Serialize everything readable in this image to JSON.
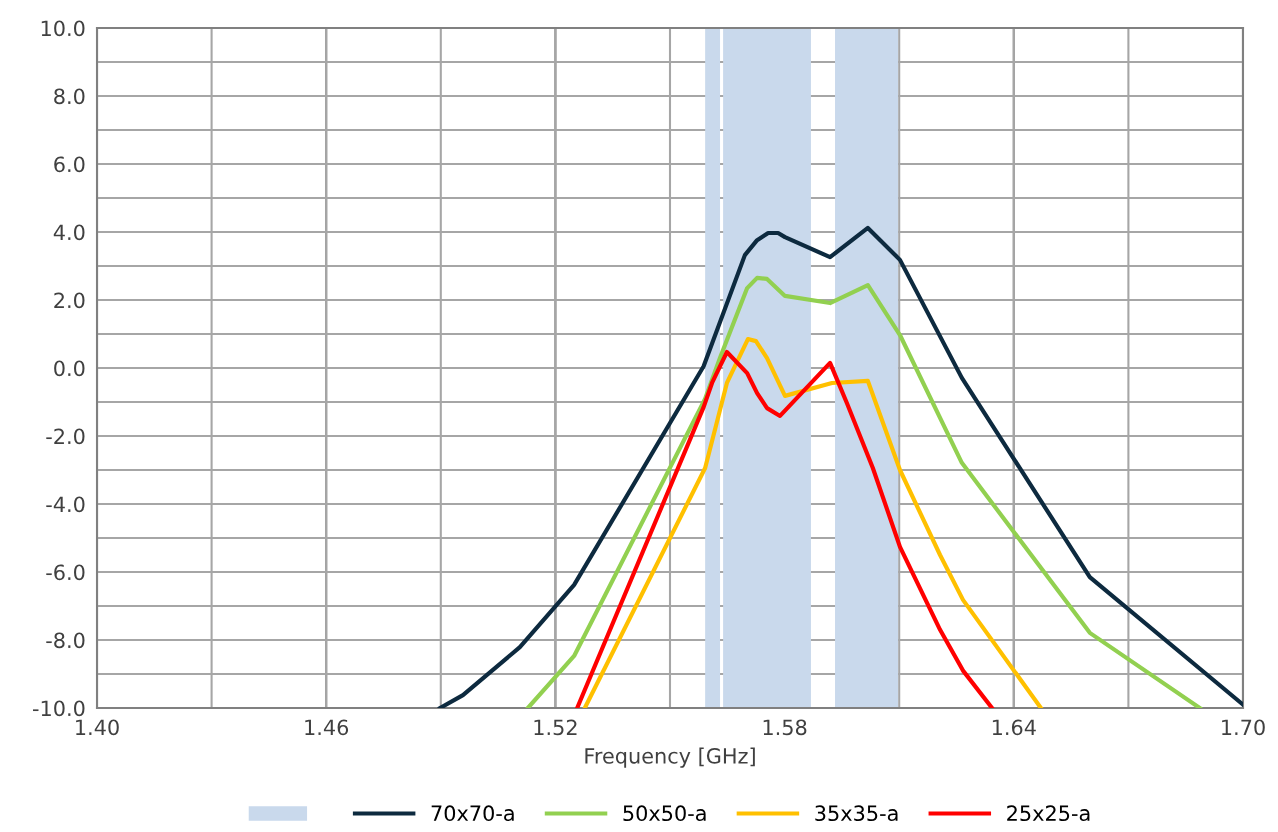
{
  "chart_data": {
    "type": "line",
    "xlabel": "Frequency [GHz]",
    "xlim": [
      1.4,
      1.7
    ],
    "xticks": [
      {
        "value": 1.4,
        "label": "1.40"
      },
      {
        "value": 1.43,
        "label": null
      },
      {
        "value": 1.46,
        "label": "1.46"
      },
      {
        "value": 1.49,
        "label": null
      },
      {
        "value": 1.52,
        "label": "1.52"
      },
      {
        "value": 1.55,
        "label": null
      },
      {
        "value": 1.58,
        "label": "1.58"
      },
      {
        "value": 1.61,
        "label": null
      },
      {
        "value": 1.64,
        "label": "1.64"
      },
      {
        "value": 1.67,
        "label": null
      },
      {
        "value": 1.7,
        "label": "1.70"
      }
    ],
    "ylim": [
      -10,
      10
    ],
    "yticks": [
      {
        "value": -10,
        "label": "-10.0"
      },
      {
        "value": -9,
        "label": null
      },
      {
        "value": -8,
        "label": "-8.0"
      },
      {
        "value": -7,
        "label": null
      },
      {
        "value": -6,
        "label": "-6.0"
      },
      {
        "value": -5,
        "label": null
      },
      {
        "value": -4,
        "label": "-4.0"
      },
      {
        "value": -3,
        "label": null
      },
      {
        "value": -2,
        "label": "-2.0"
      },
      {
        "value": -1,
        "label": null
      },
      {
        "value": 0,
        "label": "0.0"
      },
      {
        "value": 1,
        "label": null
      },
      {
        "value": 2,
        "label": "2.0"
      },
      {
        "value": 3,
        "label": null
      },
      {
        "value": 4,
        "label": "4.0"
      },
      {
        "value": 5,
        "label": null
      },
      {
        "value": 6,
        "label": "6.0"
      },
      {
        "value": 7,
        "label": null
      },
      {
        "value": 8,
        "label": "8.0"
      },
      {
        "value": 9,
        "label": null
      },
      {
        "value": 10,
        "label": "10.0"
      }
    ],
    "grid": true,
    "legend": "bottom",
    "marker": "none",
    "line_style": "solid",
    "bands": [
      {
        "axis": "x",
        "from": 1.5592,
        "to": 1.5631,
        "color": "#c9d9ec"
      },
      {
        "axis": "x",
        "from": 1.5639,
        "to": 1.5869,
        "color": "#c9d9ec"
      },
      {
        "axis": "x",
        "from": 1.5932,
        "to": 1.6097,
        "color": "#c9d9ec"
      }
    ],
    "series": [
      {
        "name": "70x70-a",
        "color": "#0d2a3f",
        "x": [
          1.4898,
          1.4958,
          1.5107,
          1.5249,
          1.5588,
          1.5696,
          1.5728,
          1.5757,
          1.5783,
          1.5801,
          1.5919,
          1.6018,
          1.6102,
          1.6264,
          1.6599,
          1.7
        ],
        "values": [
          -10,
          -9.62,
          -8.21,
          -6.38,
          0.05,
          3.32,
          3.76,
          3.97,
          3.97,
          3.85,
          3.26,
          4.12,
          3.18,
          -0.29,
          -6.15,
          -9.9
        ]
      },
      {
        "name": "50x50-a",
        "color": "#92d050",
        "x": [
          1.5128,
          1.5249,
          1.5592,
          1.5631,
          1.5702,
          1.5728,
          1.5754,
          1.5801,
          1.5919,
          1.6018,
          1.6102,
          1.6264,
          1.6599,
          1.6887
        ],
        "values": [
          -10,
          -8.47,
          -0.9,
          0.3,
          2.35,
          2.65,
          2.62,
          2.12,
          1.91,
          2.44,
          0.97,
          -2.79,
          -7.79,
          -10
        ]
      },
      {
        "name": "35x35-a",
        "color": "#ffc000",
        "x": [
          1.5277,
          1.5592,
          1.5649,
          1.5704,
          1.5725,
          1.5754,
          1.5801,
          1.5924,
          1.6018,
          1.6102,
          1.6207,
          1.6267,
          1.6471
        ],
        "values": [
          -10,
          -2.94,
          -0.44,
          0.85,
          0.79,
          0.29,
          -0.82,
          -0.44,
          -0.38,
          -3.0,
          -5.5,
          -6.82,
          -10
        ]
      },
      {
        "name": "25x25-a",
        "color": "#ff0000",
        "x": [
          1.5257,
          1.5588,
          1.561,
          1.5649,
          1.5702,
          1.5728,
          1.5754,
          1.5788,
          1.5919,
          1.5963,
          1.6031,
          1.6102,
          1.6207,
          1.6267,
          1.6343
        ],
        "values": [
          -10,
          -1.15,
          -0.44,
          0.47,
          -0.15,
          -0.74,
          -1.18,
          -1.41,
          0.15,
          -1.03,
          -2.94,
          -5.26,
          -7.7,
          -8.9,
          -10
        ]
      }
    ]
  }
}
